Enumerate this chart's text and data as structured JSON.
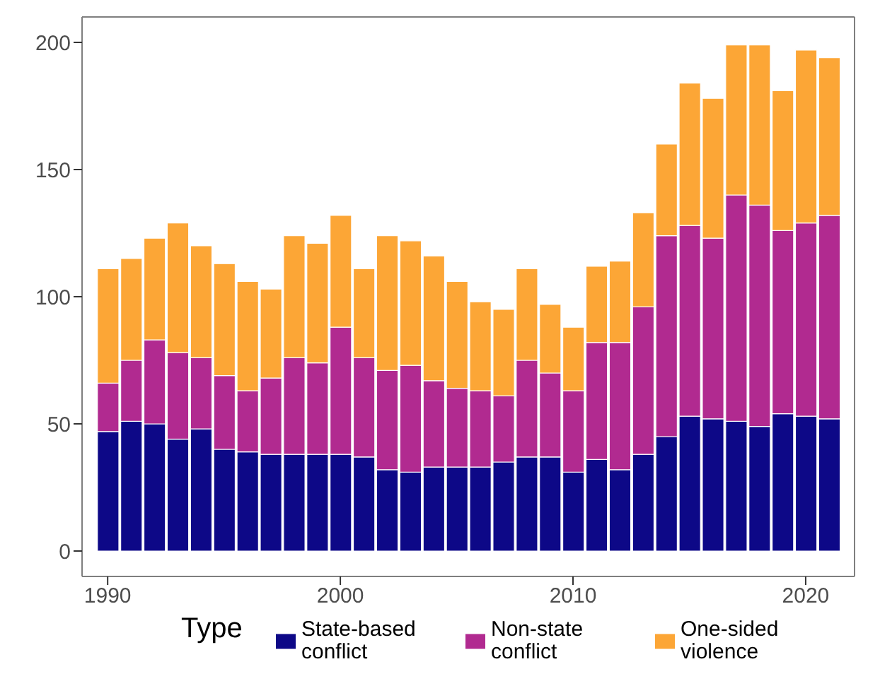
{
  "chart_data": {
    "type": "bar",
    "stacked": true,
    "legend": "bottom",
    "legend_title": "Type",
    "grid": false,
    "x": [
      1990,
      1991,
      1992,
      1993,
      1994,
      1995,
      1996,
      1997,
      1998,
      1999,
      2000,
      2001,
      2002,
      2003,
      2004,
      2005,
      2006,
      2007,
      2008,
      2009,
      2010,
      2011,
      2012,
      2013,
      2014,
      2015,
      2016,
      2017,
      2018,
      2019,
      2020,
      2021
    ],
    "xlim": [
      1988.9,
      2022.1
    ],
    "xticks": [
      1990,
      2000,
      2010,
      2020
    ],
    "ylim": [
      -10,
      210
    ],
    "yticks": [
      0,
      50,
      100,
      150,
      200
    ],
    "series": [
      {
        "name": "State-based conflict",
        "color": "#0d0887",
        "values": [
          47,
          51,
          50,
          44,
          48,
          40,
          39,
          38,
          38,
          38,
          38,
          37,
          32,
          31,
          33,
          33,
          33,
          35,
          37,
          37,
          31,
          36,
          32,
          38,
          45,
          53,
          52,
          51,
          49,
          54,
          53,
          52
        ]
      },
      {
        "name": "Non-state conflict",
        "color": "#b12a90",
        "values": [
          19,
          24,
          33,
          34,
          28,
          29,
          24,
          30,
          38,
          36,
          50,
          39,
          39,
          42,
          34,
          31,
          30,
          26,
          38,
          33,
          32,
          46,
          50,
          58,
          79,
          75,
          71,
          89,
          87,
          72,
          76,
          80
        ]
      },
      {
        "name": "One-sided violence",
        "color": "#fca636",
        "values": [
          45,
          40,
          40,
          51,
          44,
          44,
          43,
          35,
          48,
          47,
          44,
          35,
          53,
          49,
          49,
          42,
          35,
          34,
          36,
          27,
          25,
          30,
          32,
          37,
          36,
          56,
          55,
          59,
          63,
          55,
          68,
          62
        ]
      }
    ]
  }
}
